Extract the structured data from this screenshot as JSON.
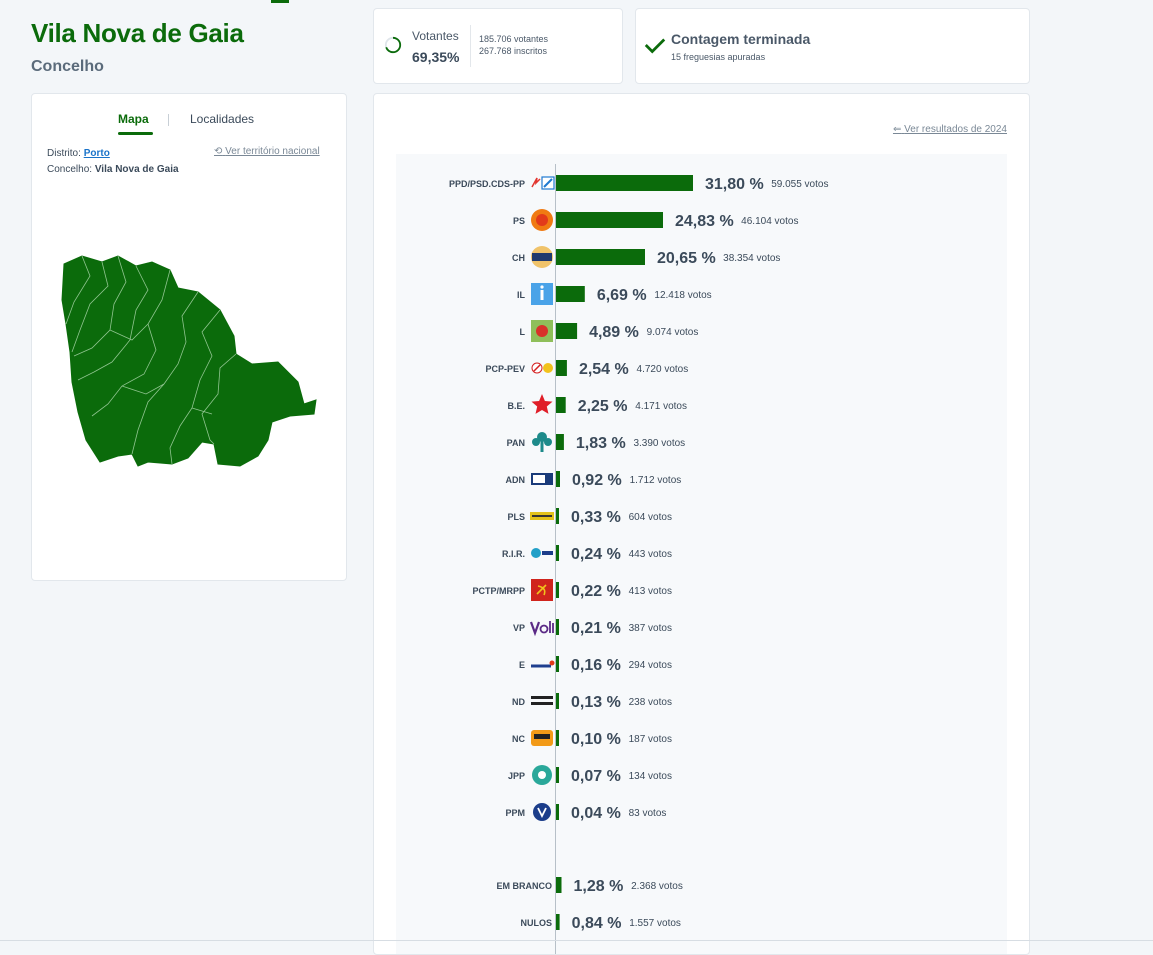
{
  "header": {
    "title": "Vila Nova de Gaia",
    "subtitle": "Concelho"
  },
  "turnout": {
    "label": "Votantes",
    "percent": "69,35%",
    "percent_value": 69.35,
    "voters": "185.706 votantes",
    "registered": "267.768 inscritos"
  },
  "status": {
    "title": "Contagem terminada",
    "subtitle": "15 freguesias apuradas"
  },
  "map_panel": {
    "tabs": [
      {
        "label": "Mapa",
        "active": true
      },
      {
        "label": "Localidades",
        "active": false
      }
    ],
    "district_label": "Distrito:",
    "district_value": "Porto",
    "county_label": "Concelho:",
    "county_value": "Vila Nova de Gaia",
    "national_link": "Ver território nacional"
  },
  "results_panel": {
    "previous_link": "Ver resultados de 2024"
  },
  "colors": {
    "accent": "#0b6b0b",
    "bar": "#0b6b0b",
    "label": "#3b4a5a",
    "link": "#1a73c9"
  },
  "chart_data": {
    "type": "bar",
    "orientation": "horizontal",
    "unit": "%",
    "series": [
      {
        "values": [
          31.8,
          24.83,
          20.65,
          6.69,
          4.89,
          2.54,
          2.25,
          1.83,
          0.92,
          0.33,
          0.24,
          0.22,
          0.21,
          0.16,
          0.13,
          0.1,
          0.07,
          0.04
        ]
      }
    ],
    "categories": [
      "PPD/PSD.CDS-PP",
      "PS",
      "CH",
      "IL",
      "L",
      "PCP-PEV",
      "B.E.",
      "PAN",
      "ADN",
      "PLS",
      "R.I.R.",
      "PCTP/MRPP",
      "VP",
      "E",
      "ND",
      "NC",
      "JPP",
      "PPM"
    ],
    "rows": [
      {
        "party": "PPD/PSD.CDS-PP",
        "pct": 31.8,
        "pct_label": "31,80 %",
        "votes": "59.055 votos",
        "logo": "ad-logo",
        "logo_color": "#1f7ad0"
      },
      {
        "party": "PS",
        "pct": 24.83,
        "pct_label": "24,83 %",
        "votes": "46.104 votos",
        "logo": "ps-logo",
        "logo_color": "#f07a12"
      },
      {
        "party": "CH",
        "pct": 20.65,
        "pct_label": "20,65 %",
        "votes": "38.354 votos",
        "logo": "chega-logo",
        "logo_color": "#203a6e"
      },
      {
        "party": "IL",
        "pct": 6.69,
        "pct_label": "6,69 %",
        "votes": "12.418 votos",
        "logo": "il-logo",
        "logo_color": "#4aa3e8"
      },
      {
        "party": "L",
        "pct": 4.89,
        "pct_label": "4,89 %",
        "votes": "9.074 votos",
        "logo": "livre-logo",
        "logo_color": "#8fbf5a"
      },
      {
        "party": "PCP-PEV",
        "pct": 2.54,
        "pct_label": "2,54 %",
        "votes": "4.720 votos",
        "logo": "cdu-logo",
        "logo_color": "#d42020"
      },
      {
        "party": "B.E.",
        "pct": 2.25,
        "pct_label": "2,25 %",
        "votes": "4.171 votos",
        "logo": "be-logo",
        "logo_color": "#e01e28"
      },
      {
        "party": "PAN",
        "pct": 1.83,
        "pct_label": "1,83 %",
        "votes": "3.390 votos",
        "logo": "pan-logo",
        "logo_color": "#1d8a8a"
      },
      {
        "party": "ADN",
        "pct": 0.92,
        "pct_label": "0,92 %",
        "votes": "1.712 votos",
        "logo": "adn-logo",
        "logo_color": "#1a3b7a"
      },
      {
        "party": "PLS",
        "pct": 0.33,
        "pct_label": "0,33 %",
        "votes": "604 votos",
        "logo": "pls-logo",
        "logo_color": "#e3c21b"
      },
      {
        "party": "R.I.R.",
        "pct": 0.24,
        "pct_label": "0,24 %",
        "votes": "443 votos",
        "logo": "rir-logo",
        "logo_color": "#22a0c8"
      },
      {
        "party": "PCTP/MRPP",
        "pct": 0.22,
        "pct_label": "0,22 %",
        "votes": "413 votos",
        "logo": "mrpp-logo",
        "logo_color": "#d0241c"
      },
      {
        "party": "VP",
        "pct": 0.21,
        "pct_label": "0,21 %",
        "votes": "387 votos",
        "logo": "volt-logo",
        "logo_color": "#5b2a86"
      },
      {
        "party": "E",
        "pct": 0.16,
        "pct_label": "0,16 %",
        "votes": "294 votos",
        "logo": "ergue-te-logo",
        "logo_color": "#1f3f8f"
      },
      {
        "party": "ND",
        "pct": 0.13,
        "pct_label": "0,13 %",
        "votes": "238 votos",
        "logo": "nd-logo",
        "logo_color": "#222222"
      },
      {
        "party": "NC",
        "pct": 0.1,
        "pct_label": "0,10 %",
        "votes": "187 votos",
        "logo": "nc-logo",
        "logo_color": "#f29a17"
      },
      {
        "party": "JPP",
        "pct": 0.07,
        "pct_label": "0,07 %",
        "votes": "134 votos",
        "logo": "jpp-logo",
        "logo_color": "#2aa89a"
      },
      {
        "party": "PPM",
        "pct": 0.04,
        "pct_label": "0,04 %",
        "votes": "83 votos",
        "logo": "ppm-logo",
        "logo_color": "#1b3d8a"
      }
    ],
    "other_rows": [
      {
        "label": "EM BRANCO",
        "pct": 1.28,
        "pct_label": "1,28 %",
        "votes": "2.368 votos"
      },
      {
        "label": "NULOS",
        "pct": 0.84,
        "pct_label": "0,84 %",
        "votes": "1.557 votos"
      }
    ]
  }
}
